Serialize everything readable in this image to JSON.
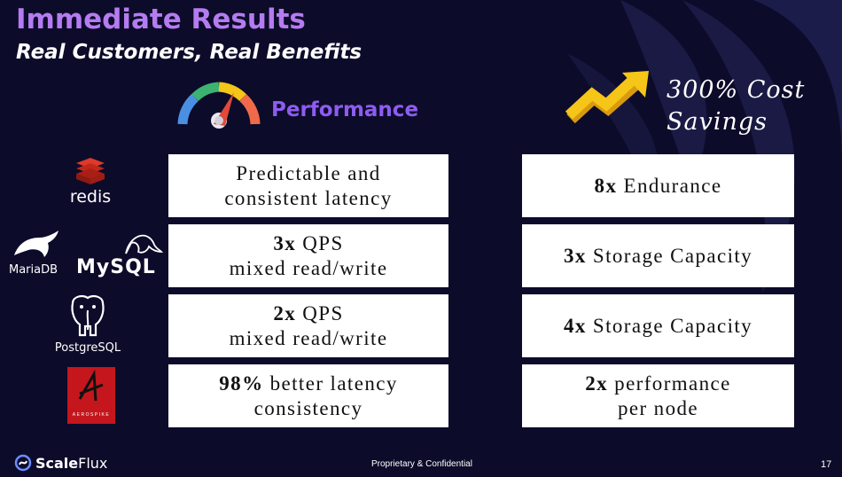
{
  "header": {
    "title": "Immediate Results",
    "subtitle": "Real Customers, Real Benefits"
  },
  "performance_label": "Performance",
  "savings": {
    "line1": "300% Cost",
    "line2": "Savings"
  },
  "logos": {
    "redis": "redis",
    "mariadb": "MariaDB",
    "mysql": "MySQL",
    "postgres": "PostgreSQL",
    "aerospike": "AEROSPIKE"
  },
  "left_boxes": [
    {
      "bold": "",
      "line1": "Predictable and",
      "line2": "consistent latency"
    },
    {
      "bold": "3x",
      "line1": " QPS",
      "line2": "mixed read/write"
    },
    {
      "bold": "2x",
      "line1": " QPS",
      "line2": "mixed read/write"
    },
    {
      "bold": "98%",
      "line1": " better latency",
      "line2": "consistency"
    }
  ],
  "right_boxes": [
    {
      "bold": "8x",
      "line1": " Endurance",
      "line2": ""
    },
    {
      "bold": "3x",
      "line1": " Storage Capacity",
      "line2": ""
    },
    {
      "bold": "4x",
      "line1": " Storage Capacity",
      "line2": ""
    },
    {
      "bold": "2x",
      "line1": " performance",
      "line2": "per node"
    }
  ],
  "footer": {
    "brand_bold": "Scale",
    "brand_rest": "Flux",
    "confidential": "Proprietary & Confidential",
    "page_number": "17"
  },
  "colors": {
    "background": "#0c0b2a",
    "title": "#b57bf0",
    "performance": "#8e5cf0",
    "box": "#ffffff",
    "arrow": "#f5c518"
  }
}
